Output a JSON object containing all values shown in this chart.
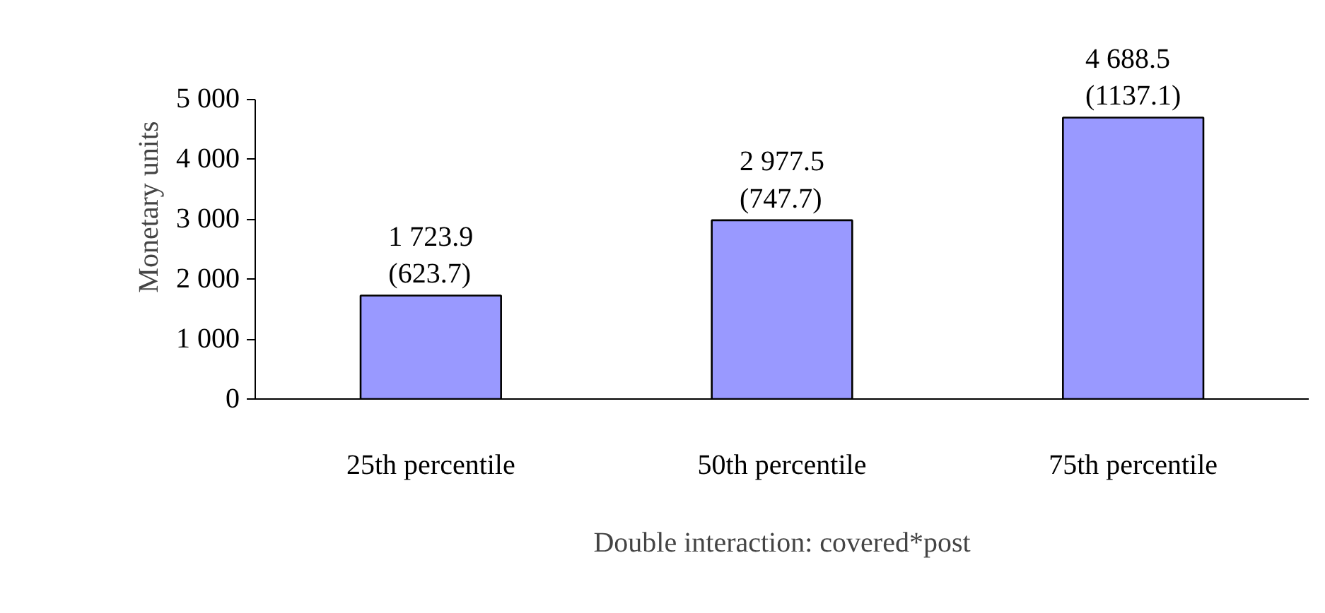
{
  "chart_data": {
    "type": "bar",
    "categories": [
      "25th percentile",
      "50th percentile",
      "75th percentile"
    ],
    "values": [
      1723.9,
      2977.5,
      4688.5
    ],
    "value_labels": [
      "1 723.9\n(623.7)",
      "2 977.5\n(747.7)",
      "4 688.5\n(1137.1)"
    ],
    "color": "#9999ff",
    "xlabel": "Double interaction: covered*post",
    "ylabel": "Monetary units",
    "ylim": [
      0,
      5000
    ],
    "yticks": [
      0,
      {
        "value": 1000,
        "label": "1 000"
      },
      {
        "value": 2000,
        "label": "2 000"
      },
      {
        "value": 3000,
        "label": "3 000"
      },
      {
        "value": 4000,
        "label": "4 000"
      },
      {
        "value": 5000,
        "label": "5 000"
      }
    ],
    "grid": false
  }
}
